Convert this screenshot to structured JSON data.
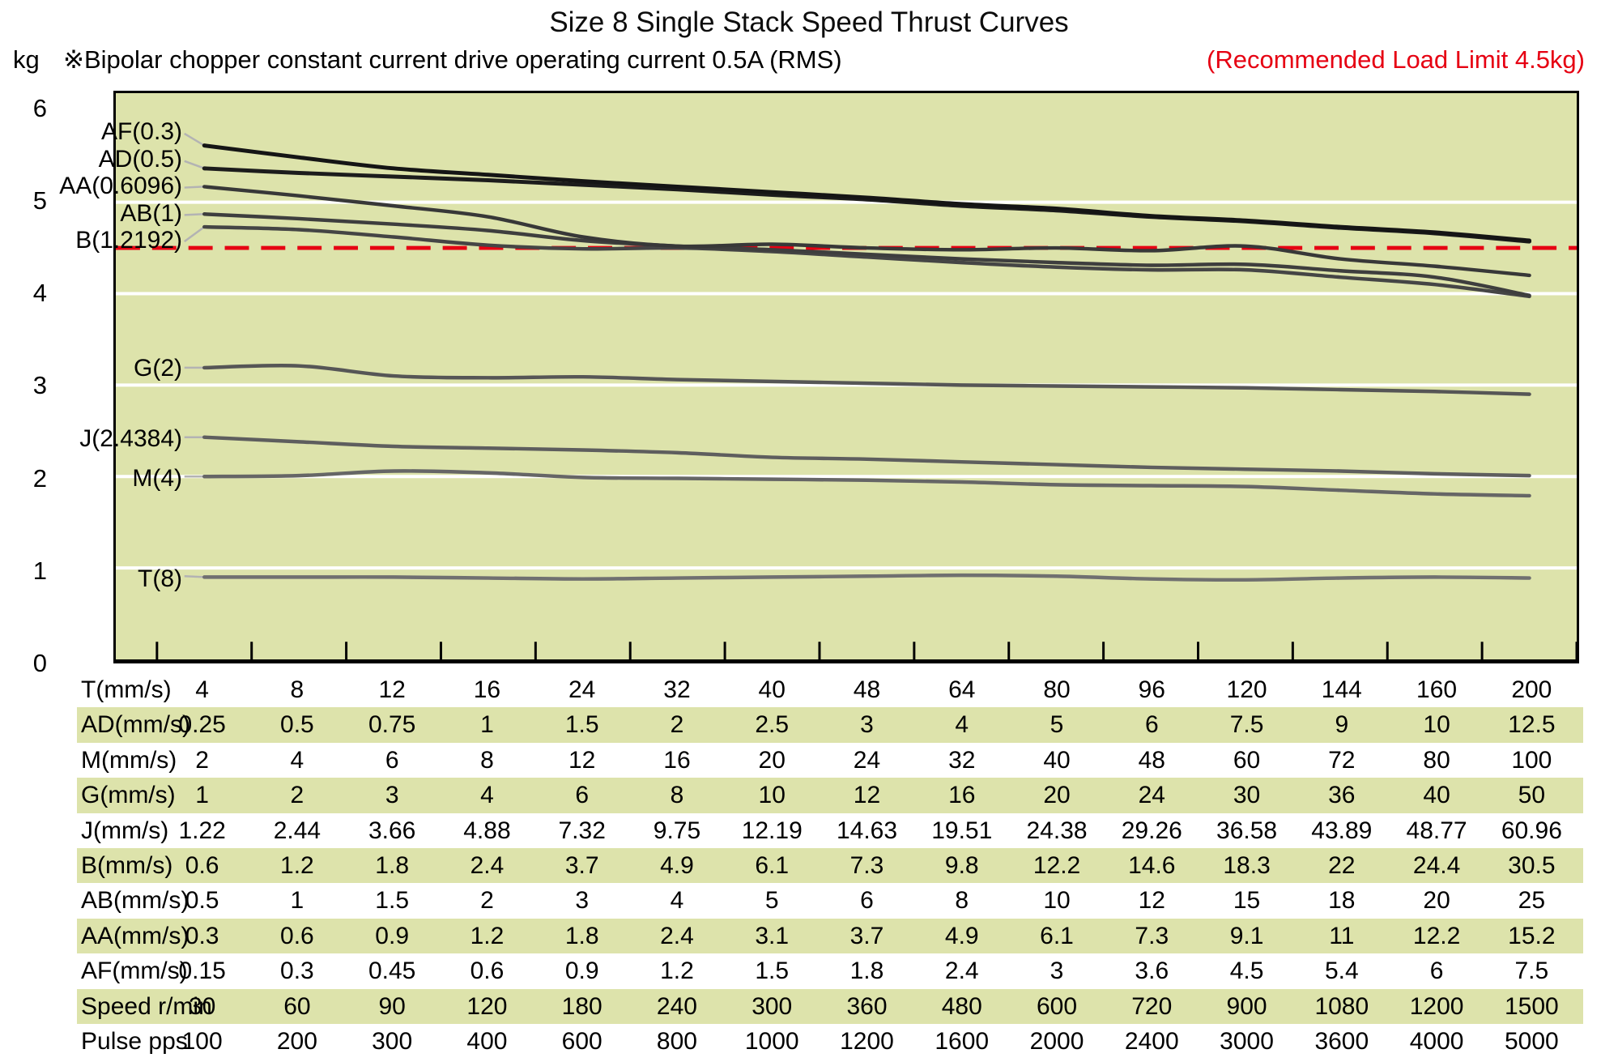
{
  "title": "Size 8 Single Stack Speed Thrust Curves",
  "subtitle": {
    "unit": "kg",
    "note": "※Bipolar chopper constant current drive operating current 0.5A (RMS)",
    "limit_note": "(Recommended Load Limit 4.5kg)"
  },
  "colors": {
    "plot_bg": "#dde3ab",
    "stripe": "#dde3ab",
    "limit_red": "#e60012",
    "grid_white": "#ffffff",
    "leader_gray": "#b3b3b3",
    "axis_black": "#000000"
  },
  "chart_data": {
    "type": "line",
    "title": "Size 8 Single Stack Speed Thrust Curves",
    "ylabel": "kg",
    "ylim": [
      0,
      6
    ],
    "yticks": [
      0,
      1,
      2,
      3,
      4,
      5,
      6
    ],
    "grid": {
      "horizontal": true,
      "color": "#ffffff"
    },
    "plot_bg": "#dde3ab",
    "x_axis_title": "T(mm/s)",
    "x_categories": [
      "4",
      "8",
      "12",
      "16",
      "24",
      "32",
      "40",
      "48",
      "64",
      "80",
      "96",
      "120",
      "144",
      "160",
      "200"
    ],
    "limit_line": {
      "value": 4.5,
      "style": "red-dashed",
      "label": "(Recommended Load Limit 4.5kg)"
    },
    "series": [
      {
        "name": "AF(0.3)",
        "color": "#151515",
        "width": 5,
        "label_kg": 5.75,
        "values": [
          5.62,
          5.49,
          5.37,
          5.3,
          5.23,
          5.17,
          5.11,
          5.05,
          4.98,
          4.93,
          4.85,
          4.8,
          4.73,
          4.67,
          4.58
        ]
      },
      {
        "name": "AD(0.5)",
        "color": "#1c1c1c",
        "width": 5,
        "label_kg": 5.45,
        "values": [
          5.37,
          5.32,
          5.28,
          5.24,
          5.19,
          5.14,
          5.08,
          5.03,
          4.96,
          4.91,
          4.84,
          4.79,
          4.72,
          4.66,
          4.57
        ]
      },
      {
        "name": "AA(0.6096)",
        "color": "#383838",
        "width": 4.5,
        "label_kg": 5.16,
        "values": [
          5.17,
          5.07,
          4.96,
          4.84,
          4.62,
          4.52,
          4.54,
          4.5,
          4.48,
          4.5,
          4.47,
          4.52,
          4.38,
          4.3,
          4.2
        ]
      },
      {
        "name": "AB(1)",
        "color": "#3e3e3e",
        "width": 4.5,
        "label_kg": 4.86,
        "values": [
          4.87,
          4.82,
          4.76,
          4.69,
          4.58,
          4.52,
          4.48,
          4.43,
          4.38,
          4.34,
          4.31,
          4.32,
          4.25,
          4.18,
          3.98
        ]
      },
      {
        "name": "B(1.2192)",
        "color": "#454545",
        "width": 4.5,
        "label_kg": 4.57,
        "values": [
          4.73,
          4.7,
          4.62,
          4.53,
          4.49,
          4.5,
          4.46,
          4.4,
          4.34,
          4.29,
          4.26,
          4.26,
          4.18,
          4.1,
          3.97
        ]
      },
      {
        "name": "G(2)",
        "color": "#565656",
        "width": 4.5,
        "label_kg": 3.19,
        "values": [
          3.19,
          3.21,
          3.1,
          3.08,
          3.09,
          3.06,
          3.04,
          3.02,
          3.0,
          2.99,
          2.98,
          2.97,
          2.95,
          2.93,
          2.9
        ]
      },
      {
        "name": "J(2.4384)",
        "color": "#5e5e5e",
        "width": 4.5,
        "label_kg": 2.43,
        "values": [
          2.43,
          2.38,
          2.33,
          2.31,
          2.29,
          2.26,
          2.21,
          2.19,
          2.16,
          2.13,
          2.1,
          2.08,
          2.06,
          2.03,
          2.01
        ]
      },
      {
        "name": "M(4)",
        "color": "#666666",
        "width": 4.5,
        "label_kg": 2.0,
        "values": [
          2.0,
          2.01,
          2.06,
          2.04,
          1.99,
          1.98,
          1.97,
          1.96,
          1.94,
          1.91,
          1.9,
          1.89,
          1.85,
          1.81,
          1.79
        ]
      },
      {
        "name": "T(8)",
        "color": "#707070",
        "width": 4.5,
        "label_kg": 0.91,
        "values": [
          0.9,
          0.9,
          0.9,
          0.89,
          0.88,
          0.89,
          0.9,
          0.91,
          0.92,
          0.91,
          0.88,
          0.87,
          0.89,
          0.9,
          0.89
        ]
      }
    ]
  },
  "table": {
    "stripe_color": "#dde3ab",
    "rows": [
      {
        "label": "T(mm/s)",
        "striped": false,
        "values": [
          "4",
          "8",
          "12",
          "16",
          "24",
          "32",
          "40",
          "48",
          "64",
          "80",
          "96",
          "120",
          "144",
          "160",
          "200"
        ]
      },
      {
        "label": "AD(mm/s)",
        "striped": true,
        "values": [
          "0.25",
          "0.5",
          "0.75",
          "1",
          "1.5",
          "2",
          "2.5",
          "3",
          "4",
          "5",
          "6",
          "7.5",
          "9",
          "10",
          "12.5"
        ]
      },
      {
        "label": "M(mm/s)",
        "striped": false,
        "values": [
          "2",
          "4",
          "6",
          "8",
          "12",
          "16",
          "20",
          "24",
          "32",
          "40",
          "48",
          "60",
          "72",
          "80",
          "100"
        ]
      },
      {
        "label": "G(mm/s)",
        "striped": true,
        "values": [
          "1",
          "2",
          "3",
          "4",
          "6",
          "8",
          "10",
          "12",
          "16",
          "20",
          "24",
          "30",
          "36",
          "40",
          "50"
        ]
      },
      {
        "label": "J(mm/s)",
        "striped": false,
        "values": [
          "1.22",
          "2.44",
          "3.66",
          "4.88",
          "7.32",
          "9.75",
          "12.19",
          "14.63",
          "19.51",
          "24.38",
          "29.26",
          "36.58",
          "43.89",
          "48.77",
          "60.96"
        ]
      },
      {
        "label": "B(mm/s)",
        "striped": true,
        "values": [
          "0.6",
          "1.2",
          "1.8",
          "2.4",
          "3.7",
          "4.9",
          "6.1",
          "7.3",
          "9.8",
          "12.2",
          "14.6",
          "18.3",
          "22",
          "24.4",
          "30.5"
        ]
      },
      {
        "label": "AB(mm/s)",
        "striped": false,
        "values": [
          "0.5",
          "1",
          "1.5",
          "2",
          "3",
          "4",
          "5",
          "6",
          "8",
          "10",
          "12",
          "15",
          "18",
          "20",
          "25"
        ]
      },
      {
        "label": "AA(mm/s)",
        "striped": true,
        "values": [
          "0.3",
          "0.6",
          "0.9",
          "1.2",
          "1.8",
          "2.4",
          "3.1",
          "3.7",
          "4.9",
          "6.1",
          "7.3",
          "9.1",
          "11",
          "12.2",
          "15.2"
        ]
      },
      {
        "label": "AF(mm/s)",
        "striped": false,
        "values": [
          "0.15",
          "0.3",
          "0.45",
          "0.6",
          "0.9",
          "1.2",
          "1.5",
          "1.8",
          "2.4",
          "3",
          "3.6",
          "4.5",
          "5.4",
          "6",
          "7.5"
        ]
      },
      {
        "label": "Speed r/min",
        "striped": true,
        "values": [
          "30",
          "60",
          "90",
          "120",
          "180",
          "240",
          "300",
          "360",
          "480",
          "600",
          "720",
          "900",
          "1080",
          "1200",
          "1500"
        ]
      },
      {
        "label": "Pulse pps",
        "striped": false,
        "values": [
          "100",
          "200",
          "300",
          "400",
          "600",
          "800",
          "1000",
          "1200",
          "1600",
          "2000",
          "2400",
          "3000",
          "3600",
          "4000",
          "5000"
        ]
      }
    ]
  }
}
